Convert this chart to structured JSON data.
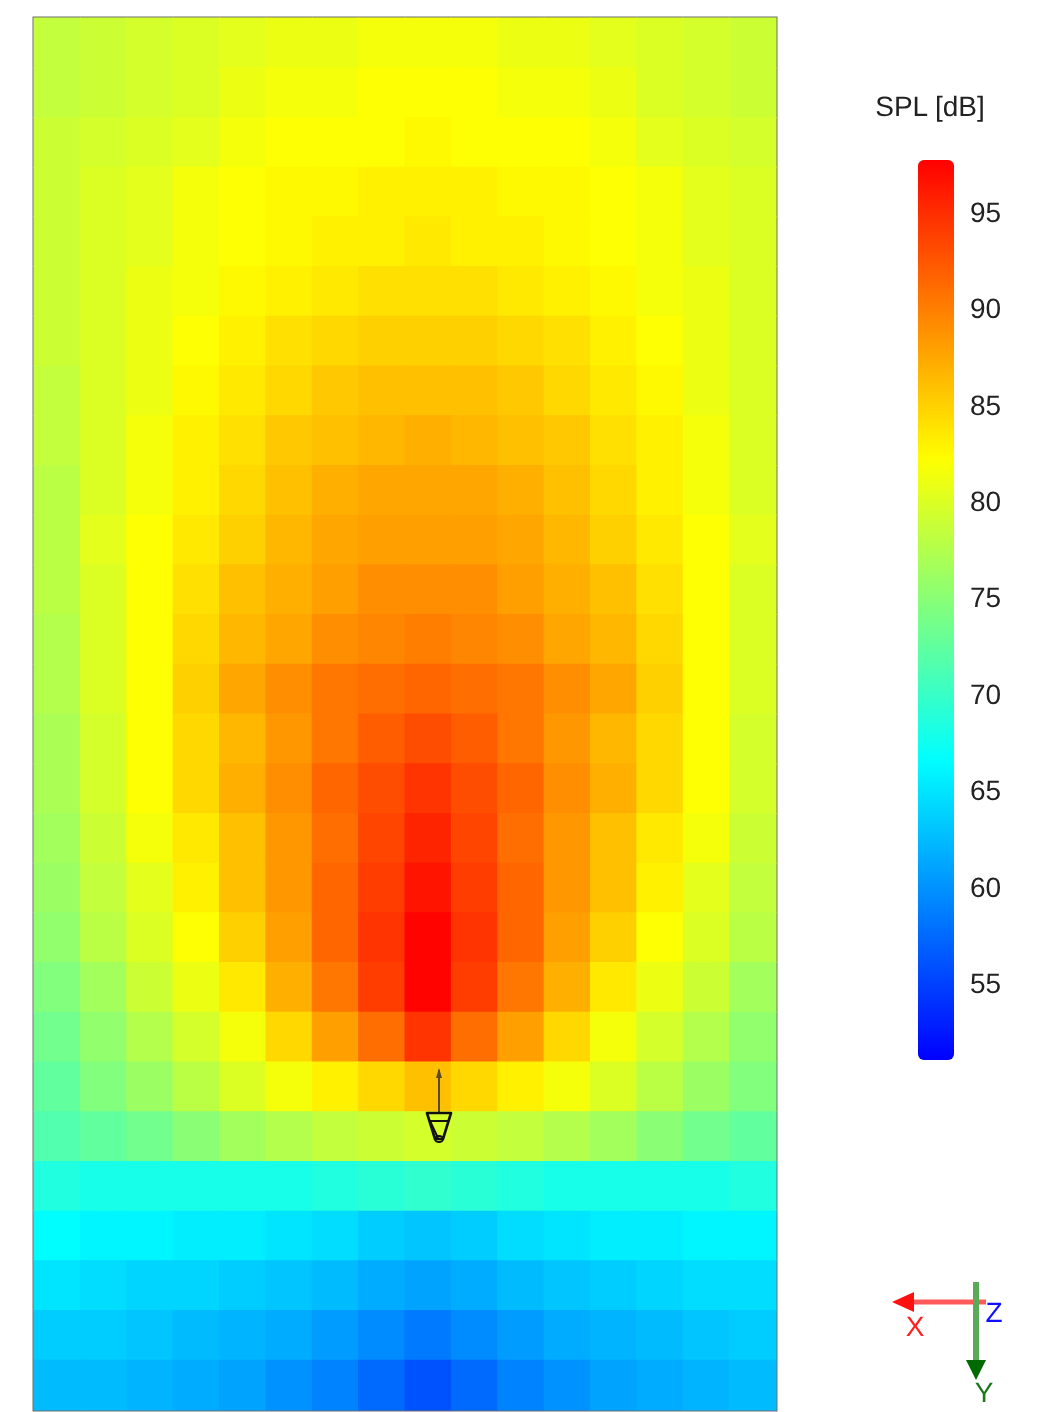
{
  "chart_data": {
    "type": "heatmap",
    "clabel": "SPL [dB]",
    "categories": [
      null,
      null,
      null,
      null,
      null,
      null,
      null,
      null,
      null,
      null,
      null,
      null,
      null,
      null,
      null,
      null
    ],
    "y_categories": [
      null,
      null,
      null,
      null,
      null,
      null,
      null,
      null,
      null,
      null,
      null,
      null,
      null,
      null,
      null,
      null,
      null,
      null,
      null,
      null,
      null,
      null,
      null,
      null,
      null,
      null,
      null,
      null
    ],
    "cells": [
      [
        78.5,
        79,
        79.5,
        80,
        80.5,
        81,
        81,
        81.5,
        81.5,
        81.5,
        81,
        81,
        80.5,
        80,
        79.5,
        79
      ],
      [
        78.5,
        79,
        79.5,
        80,
        81,
        81.5,
        81.5,
        82,
        82,
        82,
        81.5,
        81.5,
        81,
        80,
        79.5,
        79
      ],
      [
        79,
        79.5,
        80,
        80.5,
        81.5,
        82,
        82,
        82,
        82.5,
        82,
        82,
        82,
        81.5,
        80.5,
        80,
        79.5
      ],
      [
        79,
        80,
        80.5,
        81.5,
        82,
        82.5,
        82.5,
        83,
        83,
        83,
        82.5,
        82.5,
        82,
        81.5,
        80.5,
        80
      ],
      [
        79,
        80,
        80.5,
        81.5,
        82,
        82.5,
        83,
        83,
        83.5,
        83,
        83,
        82.5,
        82,
        81.5,
        80.5,
        80
      ],
      [
        79,
        80,
        81,
        81.5,
        82.5,
        83,
        83.5,
        84,
        84,
        84,
        83.5,
        83,
        82.5,
        81.5,
        81,
        80
      ],
      [
        79,
        80,
        81,
        82,
        83,
        84,
        84.5,
        85,
        85,
        85,
        84.5,
        84,
        83,
        82,
        81,
        80
      ],
      [
        78.5,
        80,
        81,
        82.5,
        83.5,
        84.5,
        85.5,
        86,
        86,
        86,
        85.5,
        84.5,
        83.5,
        82.5,
        81,
        80
      ],
      [
        78.5,
        80,
        81.5,
        83,
        84,
        85.5,
        86,
        86.5,
        87,
        86.5,
        86,
        85.5,
        84,
        83,
        81.5,
        80
      ],
      [
        78,
        80,
        81.5,
        83,
        84.5,
        86,
        87,
        87.5,
        87.5,
        87.5,
        87,
        86,
        84.5,
        83,
        81.5,
        80
      ],
      [
        78,
        80.5,
        82,
        83.5,
        85,
        86.5,
        87.5,
        88,
        88,
        88,
        87.5,
        86.5,
        85,
        83.5,
        82,
        80.5
      ],
      [
        78,
        80,
        82,
        84,
        86,
        87,
        88,
        89,
        89,
        89,
        88,
        87,
        86,
        84,
        82,
        80
      ],
      [
        77.5,
        80,
        82,
        84.5,
        86.5,
        87.5,
        89,
        89.5,
        90,
        89.5,
        89,
        87.5,
        86.5,
        84.5,
        82,
        80
      ],
      [
        77.5,
        80,
        82,
        85,
        87.5,
        89,
        90.5,
        91,
        91.5,
        91,
        90.5,
        89,
        87.5,
        85,
        82,
        80
      ],
      [
        77,
        79.5,
        82,
        84.5,
        86.5,
        88.5,
        90.5,
        92,
        93,
        92,
        90.5,
        88.5,
        86.5,
        84.5,
        82,
        79.5
      ],
      [
        77,
        79.5,
        82,
        84.5,
        87,
        89,
        91.5,
        93,
        94.5,
        93,
        91.5,
        89,
        87,
        84.5,
        82,
        79.5
      ],
      [
        76.5,
        79,
        81.5,
        83.5,
        86,
        88.5,
        91,
        93.5,
        95.5,
        93.5,
        91,
        88.5,
        86,
        83.5,
        81.5,
        79
      ],
      [
        76,
        78.5,
        80.5,
        83,
        86,
        88.5,
        91.5,
        94,
        96.5,
        94,
        91.5,
        88.5,
        86,
        83,
        80.5,
        78.5
      ],
      [
        75.5,
        78,
        80,
        82,
        85,
        88,
        91.5,
        94.5,
        97.5,
        94.5,
        91.5,
        88,
        85,
        82,
        80,
        78
      ],
      [
        74.5,
        76.5,
        79,
        81,
        83.5,
        87,
        90.5,
        94,
        97.5,
        94,
        90.5,
        87,
        83.5,
        81,
        79,
        76.5
      ],
      [
        73.5,
        75.5,
        77.5,
        79.5,
        81.5,
        84.5,
        88,
        91,
        94.5,
        91,
        88,
        84.5,
        81.5,
        79.5,
        77.5,
        75.5
      ],
      [
        72.5,
        74.5,
        76,
        78,
        80,
        81.5,
        83,
        84.5,
        86,
        84.5,
        83,
        81.5,
        80,
        78,
        76,
        74.5
      ],
      [
        71.5,
        72.5,
        73.5,
        75,
        76.5,
        77.5,
        78.5,
        79,
        79.5,
        79,
        78.5,
        77.5,
        76.5,
        75,
        73.5,
        72.5
      ],
      [
        68.5,
        68,
        68,
        68,
        68,
        68,
        68.5,
        69,
        69.5,
        69,
        68.5,
        68,
        68,
        68,
        68,
        68.5
      ],
      [
        66.5,
        66,
        66,
        65.5,
        65.5,
        65,
        64.5,
        63.5,
        63,
        63.5,
        64.5,
        65,
        65.5,
        65.5,
        66,
        66
      ],
      [
        65,
        64.5,
        64,
        64,
        63.5,
        63,
        62.5,
        61.5,
        61,
        61.5,
        62.5,
        63,
        63.5,
        64,
        64.5,
        64.5
      ],
      [
        63.5,
        63.5,
        63,
        62.5,
        62,
        61.5,
        60.5,
        59.5,
        58.5,
        59.5,
        60.5,
        61.5,
        62,
        62.5,
        63,
        63.5
      ],
      [
        62.5,
        62.5,
        62,
        61.5,
        61,
        60,
        59,
        57.5,
        56,
        57.5,
        59,
        60,
        61,
        61.5,
        62,
        62.5
      ]
    ],
    "clim": [
      51,
      97.7
    ],
    "cticks": [
      55,
      60,
      65,
      70,
      75,
      80,
      85,
      90,
      95
    ],
    "tick_labels": false,
    "annotations": [
      "X",
      "Z",
      "Y"
    ]
  }
}
